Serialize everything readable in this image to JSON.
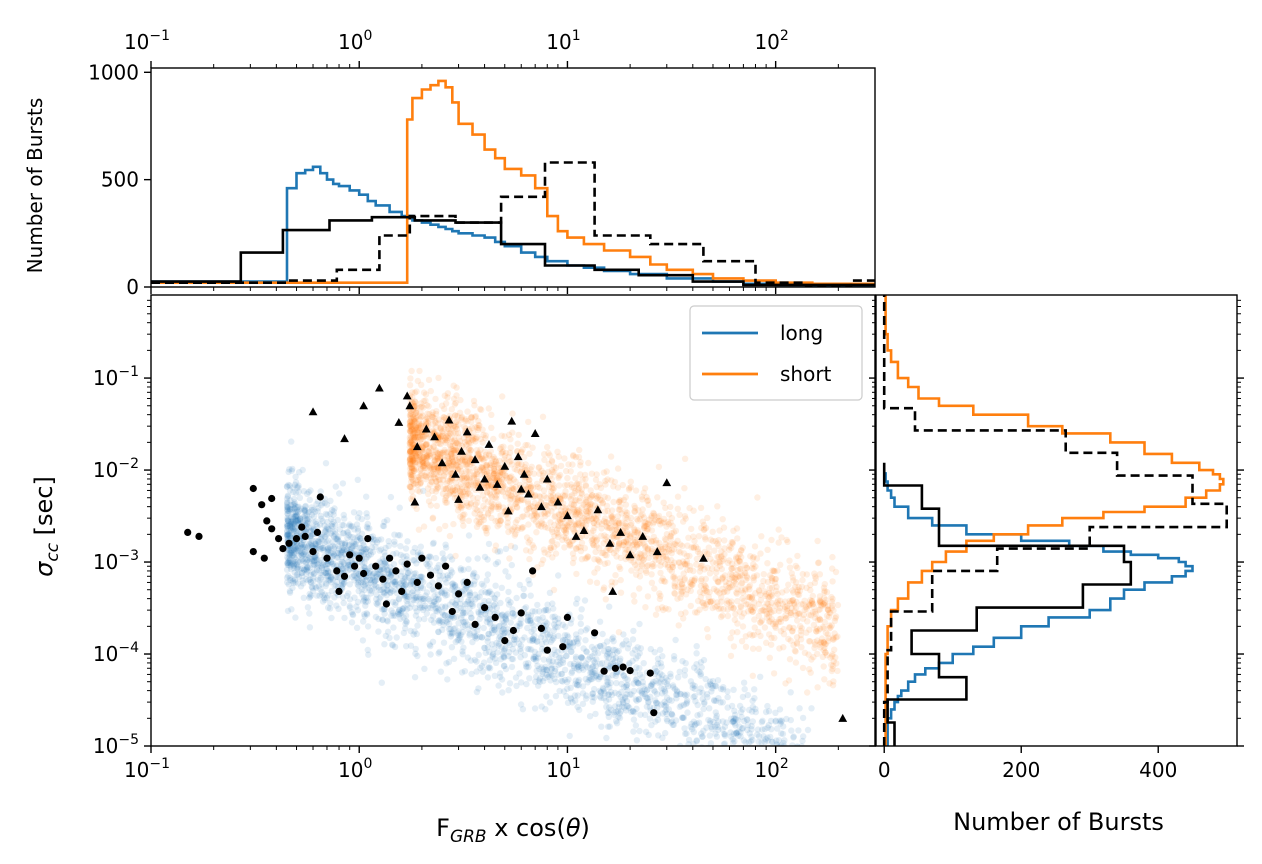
{
  "chart_data": [
    {
      "panel": "top",
      "type": "histogram",
      "xscale": "log",
      "xlim": [
        0.1,
        300
      ],
      "ylim": [
        0,
        1020
      ],
      "ylabel": "Number of Bursts",
      "xticks": [
        {
          "value": 0.1,
          "base": "10",
          "exp": "−1"
        },
        {
          "value": 1,
          "base": "10",
          "exp": "0"
        },
        {
          "value": 10,
          "base": "10",
          "exp": "1"
        },
        {
          "value": 100,
          "base": "10",
          "exp": "2"
        }
      ],
      "yticks": [
        "0",
        "500",
        "1000"
      ],
      "series": [
        {
          "color": "#1f77b4",
          "style": "solid",
          "bin_edges": [
            0.1,
            0.45,
            0.5,
            0.55,
            0.6,
            0.65,
            0.7,
            0.75,
            0.8,
            0.9,
            1.0,
            1.1,
            1.2,
            1.4,
            1.6,
            1.8,
            2.0,
            2.2,
            2.4,
            2.6,
            2.8,
            3.0,
            3.5,
            4.0,
            4.5,
            5.0,
            6.0,
            7.0,
            8.0,
            10,
            12,
            15,
            20,
            30,
            50,
            70,
            100,
            150,
            300
          ],
          "counts": [
            25,
            460,
            530,
            545,
            560,
            530,
            500,
            480,
            470,
            450,
            430,
            400,
            380,
            350,
            330,
            310,
            300,
            290,
            280,
            270,
            260,
            250,
            240,
            230,
            210,
            190,
            160,
            140,
            120,
            100,
            90,
            75,
            60,
            40,
            25,
            15,
            10,
            5
          ]
        },
        {
          "color": "#ff7f0e",
          "style": "solid",
          "bin_edges": [
            0.1,
            1.7,
            1.8,
            2.0,
            2.2,
            2.4,
            2.6,
            2.8,
            3.0,
            3.5,
            4.0,
            4.5,
            5.0,
            6.0,
            7.0,
            8.0,
            9.0,
            10,
            12,
            15,
            20,
            25,
            30,
            40,
            50,
            70,
            100,
            150,
            300
          ],
          "counts": [
            20,
            780,
            880,
            920,
            940,
            960,
            930,
            860,
            760,
            710,
            640,
            600,
            550,
            520,
            460,
            330,
            260,
            230,
            200,
            170,
            140,
            105,
            80,
            60,
            40,
            30,
            20,
            15
          ]
        },
        {
          "color": "#000000",
          "style": "dashed",
          "bin_edges": [
            0.1,
            0.45,
            0.78,
            1.25,
            1.75,
            2.9,
            4.8,
            7.8,
            13.5,
            25,
            45,
            80,
            140,
            230,
            300
          ],
          "counts": [
            20,
            30,
            80,
            240,
            330,
            300,
            420,
            580,
            240,
            200,
            120,
            20,
            0,
            30
          ]
        },
        {
          "color": "#000000",
          "style": "solid",
          "bin_edges": [
            0.1,
            0.27,
            0.43,
            0.72,
            1.15,
            1.85,
            2.9,
            4.8,
            7.8,
            13.5,
            22,
            40,
            70,
            300
          ],
          "counts": [
            25,
            160,
            265,
            310,
            325,
            310,
            300,
            200,
            100,
            80,
            55,
            25,
            10
          ]
        }
      ]
    },
    {
      "panel": "main",
      "type": "scatter",
      "xscale": "log",
      "yscale": "log",
      "xlim": [
        0.1,
        300
      ],
      "ylim": [
        1e-05,
        0.8
      ],
      "xlabel_main": "F",
      "xlabel_sub": "GRB",
      "xlabel_rest": " x cos(",
      "xlabel_theta": "θ",
      "xlabel_close": ")",
      "ylabel_main": "σ",
      "ylabel_sub": "cc",
      "ylabel_rest": " [sec]",
      "xticks": [
        {
          "value": 0.1,
          "base": "10",
          "exp": "−1"
        },
        {
          "value": 1,
          "base": "10",
          "exp": "0"
        },
        {
          "value": 10,
          "base": "10",
          "exp": "1"
        },
        {
          "value": 100,
          "base": "10",
          "exp": "2"
        }
      ],
      "yticks": [
        {
          "value": 1e-05,
          "base": "10",
          "exp": "−5"
        },
        {
          "value": 0.0001,
          "base": "10",
          "exp": "−4"
        },
        {
          "value": 0.001,
          "base": "10",
          "exp": "−3"
        },
        {
          "value": 0.01,
          "base": "10",
          "exp": "−2"
        },
        {
          "value": 0.1,
          "base": "10",
          "exp": "−1"
        }
      ],
      "legend": {
        "location": "upper right",
        "entries": [
          {
            "label": "long",
            "color": "#1f77b4"
          },
          {
            "label": "short",
            "color": "#ff7f0e"
          }
        ]
      },
      "long_cloud": {
        "color": "#1f77b4",
        "x_range": [
          0.45,
          150
        ],
        "sigma_at_x1": 0.0009,
        "slope": -1.0,
        "log_scatter": 0.3
      },
      "short_cloud": {
        "color": "#ff7f0e",
        "x_range": [
          1.75,
          200
        ],
        "sigma_at_x3": 0.012,
        "slope": -1.0,
        "log_scatter": 0.3
      },
      "circles": [
        [
          0.15,
          0.0021
        ],
        [
          0.17,
          0.0019
        ],
        [
          0.31,
          0.0063
        ],
        [
          0.31,
          0.0013
        ],
        [
          0.34,
          0.0042
        ],
        [
          0.35,
          0.0011
        ],
        [
          0.36,
          0.0028
        ],
        [
          0.38,
          0.0049
        ],
        [
          0.38,
          0.0023
        ],
        [
          0.41,
          0.0018
        ],
        [
          0.43,
          0.0014
        ],
        [
          0.46,
          0.0016
        ],
        [
          0.5,
          0.0018
        ],
        [
          0.53,
          0.0024
        ],
        [
          0.55,
          0.0019
        ],
        [
          0.6,
          0.0013
        ],
        [
          0.63,
          0.0021
        ],
        [
          0.65,
          0.0051
        ],
        [
          0.7,
          0.0011
        ],
        [
          0.78,
          0.0008
        ],
        [
          0.8,
          0.00048
        ],
        [
          0.85,
          0.0007
        ],
        [
          0.9,
          0.0012
        ],
        [
          0.95,
          0.0009
        ],
        [
          1.0,
          0.0011
        ],
        [
          1.05,
          0.00075
        ],
        [
          1.1,
          0.0018
        ],
        [
          1.2,
          0.0009
        ],
        [
          1.3,
          0.00065
        ],
        [
          1.4,
          0.0011
        ],
        [
          1.5,
          0.0008
        ],
        [
          1.6,
          0.00048
        ],
        [
          1.7,
          0.00095
        ],
        [
          1.9,
          0.0006
        ],
        [
          2.0,
          0.0011
        ],
        [
          2.2,
          0.00072
        ],
        [
          2.4,
          0.00055
        ],
        [
          2.6,
          0.0009
        ],
        [
          3.0,
          0.00045
        ],
        [
          3.3,
          0.0006
        ],
        [
          3.6,
          0.00021
        ],
        [
          4.0,
          0.00032
        ],
        [
          4.5,
          0.00025
        ],
        [
          5.0,
          0.00014
        ],
        [
          5.5,
          0.00018
        ],
        [
          6.0,
          0.00028
        ],
        [
          6.8,
          0.0008
        ],
        [
          7.5,
          0.00019
        ],
        [
          8.0,
          0.00011
        ],
        [
          9.5,
          0.00012
        ],
        [
          10.0,
          0.00025
        ],
        [
          13.5,
          0.00017
        ],
        [
          15.0,
          6.5e-05
        ],
        [
          17.0,
          7e-05
        ],
        [
          18.5,
          7.2e-05
        ],
        [
          20.0,
          6.6e-05
        ],
        [
          25.0,
          6.2e-05
        ],
        [
          26.0,
          2.3e-05
        ],
        [
          1.35,
          0.00035
        ],
        [
          2.8,
          0.00029
        ]
      ],
      "triangles": [
        [
          0.6,
          0.043
        ],
        [
          0.85,
          0.022
        ],
        [
          1.05,
          0.05
        ],
        [
          1.25,
          0.078
        ],
        [
          1.55,
          0.033
        ],
        [
          1.7,
          0.064
        ],
        [
          1.75,
          0.05
        ],
        [
          1.85,
          0.0045
        ],
        [
          1.9,
          0.018
        ],
        [
          2.1,
          0.028
        ],
        [
          2.3,
          0.023
        ],
        [
          2.5,
          0.012
        ],
        [
          2.7,
          0.035
        ],
        [
          2.9,
          0.009
        ],
        [
          3.1,
          0.016
        ],
        [
          3.3,
          0.026
        ],
        [
          3.6,
          0.013
        ],
        [
          4.0,
          0.008
        ],
        [
          4.2,
          0.019
        ],
        [
          4.6,
          0.007
        ],
        [
          5.0,
          0.011
        ],
        [
          5.4,
          0.034
        ],
        [
          5.8,
          0.014
        ],
        [
          6.2,
          0.009
        ],
        [
          6.5,
          0.0055
        ],
        [
          7.0,
          0.025
        ],
        [
          7.5,
          0.004
        ],
        [
          8.0,
          0.008
        ],
        [
          9.0,
          0.0045
        ],
        [
          10.0,
          0.0032
        ],
        [
          12.0,
          0.0022
        ],
        [
          14.0,
          0.0037
        ],
        [
          16.0,
          0.0016
        ],
        [
          18.0,
          0.0021
        ],
        [
          20.0,
          0.0012
        ],
        [
          23.0,
          0.0019
        ],
        [
          27.0,
          0.0013
        ],
        [
          30.0,
          0.0073
        ],
        [
          45.0,
          0.0011
        ],
        [
          210.0,
          2e-05
        ],
        [
          3.0,
          0.0048
        ],
        [
          3.8,
          0.0065
        ],
        [
          5.2,
          0.0036
        ],
        [
          6.0,
          0.0062
        ],
        [
          11.0,
          0.0019
        ],
        [
          16.5,
          0.00048
        ]
      ]
    },
    {
      "panel": "right",
      "type": "histogram",
      "orientation": "horizontal",
      "yscale": "log",
      "ylim": [
        1e-05,
        0.8
      ],
      "xlim": [
        -12,
        515
      ],
      "xlabel": "Number of Bursts",
      "xticks": [
        "0",
        "200",
        "400"
      ],
      "series": [
        {
          "color": "#1f77b4",
          "style": "solid",
          "bin_edges": [
            1e-05,
            2e-05,
            2.5e-05,
            3e-05,
            3.5e-05,
            4e-05,
            5e-05,
            6e-05,
            7e-05,
            8e-05,
            0.0001,
            0.00012,
            0.00015,
            0.0002,
            0.00025,
            0.0003,
            0.0004,
            0.0005,
            0.0006,
            0.0007,
            0.0008,
            0.0009,
            0.001,
            0.0011,
            0.0012,
            0.0013,
            0.0015,
            0.0017,
            0.002,
            0.0025,
            0.003,
            0.004,
            0.005,
            0.006,
            0.0075,
            0.0095
          ],
          "counts": [
            5,
            10,
            15,
            20,
            25,
            35,
            45,
            60,
            80,
            100,
            130,
            160,
            200,
            240,
            300,
            330,
            350,
            380,
            420,
            440,
            450,
            440,
            430,
            400,
            360,
            320,
            270,
            200,
            120,
            70,
            35,
            15,
            10,
            5,
            2
          ]
        },
        {
          "color": "#ff7f0e",
          "style": "solid",
          "bin_edges": [
            1e-05,
            0.0001,
            0.0002,
            0.0003,
            0.0004,
            0.0006,
            0.0008,
            0.001,
            0.0013,
            0.0017,
            0.002,
            0.0025,
            0.003,
            0.0035,
            0.004,
            0.005,
            0.006,
            0.007,
            0.008,
            0.009,
            0.01,
            0.012,
            0.015,
            0.02,
            0.025,
            0.03,
            0.04,
            0.05,
            0.06,
            0.08,
            0.1,
            0.15,
            0.2,
            0.3,
            0.8
          ],
          "counts": [
            2,
            5,
            10,
            20,
            35,
            55,
            70,
            90,
            120,
            160,
            210,
            260,
            320,
            380,
            440,
            470,
            490,
            495,
            490,
            480,
            460,
            420,
            380,
            330,
            260,
            210,
            130,
            80,
            50,
            35,
            20,
            10,
            5,
            2
          ]
        },
        {
          "color": "#000000",
          "style": "dashed",
          "bin_edges": [
            1e-05,
            3e-05,
            0.00011,
            0.00029,
            0.0008,
            0.0014,
            0.0024,
            0.0043,
            0.0087,
            0.0154,
            0.027,
            0.047,
            0.081,
            0.8
          ],
          "counts": [
            0,
            5,
            10,
            70,
            165,
            300,
            500,
            450,
            340,
            265,
            45,
            0,
            0
          ]
        },
        {
          "color": "#000000",
          "style": "solid",
          "bin_edges": [
            1e-05,
            1.8e-05,
            3.2e-05,
            5.6e-05,
            0.0001,
            0.00018,
            0.00032,
            0.00057,
            0.001,
            0.0015,
            0.0038,
            0.0068,
            0.012
          ],
          "counts": [
            15,
            5,
            120,
            80,
            40,
            135,
            290,
            360,
            350,
            80,
            55,
            0
          ]
        }
      ]
    }
  ]
}
